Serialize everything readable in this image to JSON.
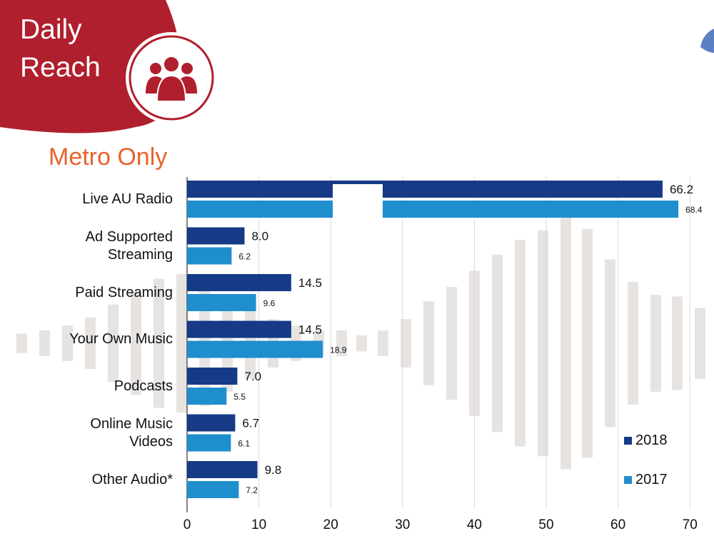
{
  "header": {
    "title_line1": "Daily",
    "title_line2": "Reach",
    "icon": "people-group-icon"
  },
  "subtitle": "Metro Only",
  "colors": {
    "red": "#b01f2d",
    "orange": "#e8632b",
    "series_2018": "#163a86",
    "series_2017": "#1f8ecd",
    "waveform": "#e6e3e1",
    "gridline": "#d9d9d9"
  },
  "chart_data": {
    "type": "bar",
    "orientation": "horizontal",
    "title": "",
    "categories": [
      "Live AU Radio",
      "Ad Supported\nStreaming",
      "Paid Streaming",
      "Your Own Music",
      "Podcasts",
      "Online Music\nVideos",
      "Other Audio*"
    ],
    "series": [
      {
        "name": "2018",
        "values": [
          66.2,
          8.0,
          14.5,
          14.5,
          7.0,
          6.7,
          9.8
        ]
      },
      {
        "name": "2017",
        "values": [
          68.4,
          6.2,
          9.6,
          18.9,
          5.5,
          6.1,
          7.2
        ]
      }
    ],
    "value_labels": [
      [
        "66.2",
        "8.0",
        "14.5",
        "14.5",
        "7.0",
        "6.7",
        "9.8"
      ],
      [
        "68.4",
        "6.2",
        "9.6",
        "18.9",
        "5.5",
        "6.1",
        "7.2"
      ]
    ],
    "xlim": [
      0,
      70
    ],
    "x_ticks": [
      "0",
      "10",
      "20",
      "30",
      "40",
      "50",
      "60",
      "70"
    ],
    "xlabel": "",
    "ylabel": "",
    "grid": true,
    "legend": "bottom-right"
  }
}
